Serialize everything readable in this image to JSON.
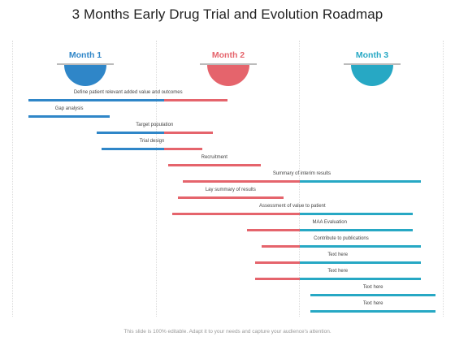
{
  "title": "3 Months Early Drug Trial and Evolution Roadmap",
  "colors": {
    "blue": "#2f86c8",
    "red": "#e5646c",
    "teal": "#27a8c4"
  },
  "months": [
    {
      "label": "Month 1",
      "color": "#2f86c8"
    },
    {
      "label": "Month 2",
      "color": "#e5646c"
    },
    {
      "label": "Month 3",
      "color": "#27a8c4"
    }
  ],
  "tasks": [
    {
      "label": "Define patient relevant added value and outcomes",
      "start_month": 0.0,
      "end_month": 1.47
    },
    {
      "label": "Gap analysis",
      "start_month": 0.0,
      "end_month": 0.6
    },
    {
      "label": "Target population",
      "start_month": 0.5,
      "end_month": 1.36
    },
    {
      "label": "Trial design",
      "start_month": 0.54,
      "end_month": 1.28
    },
    {
      "label": "Recruitment",
      "start_month": 1.03,
      "end_month": 1.71
    },
    {
      "label": "Summary of interim results",
      "start_month": 1.14,
      "end_month": 2.89
    },
    {
      "label": "Lay summary of results",
      "start_month": 1.1,
      "end_month": 1.88
    },
    {
      "label": "Assessment of value to patient",
      "start_month": 1.06,
      "end_month": 2.83
    },
    {
      "label": "MAA Evaluation",
      "start_month": 1.61,
      "end_month": 2.83
    },
    {
      "label": "Contribute to publications",
      "start_month": 1.72,
      "end_month": 2.89
    },
    {
      "label": "Text here",
      "start_month": 1.67,
      "end_month": 2.89
    },
    {
      "label": "Text here",
      "start_month": 1.67,
      "end_month": 2.89
    },
    {
      "label": "Text here",
      "start_month": 2.08,
      "end_month": 3.0
    },
    {
      "label": "Text here",
      "start_month": 2.08,
      "end_month": 3.0
    }
  ],
  "footer": "This slide is 100% editable. Adapt it to your needs and capture your audience's attention."
}
